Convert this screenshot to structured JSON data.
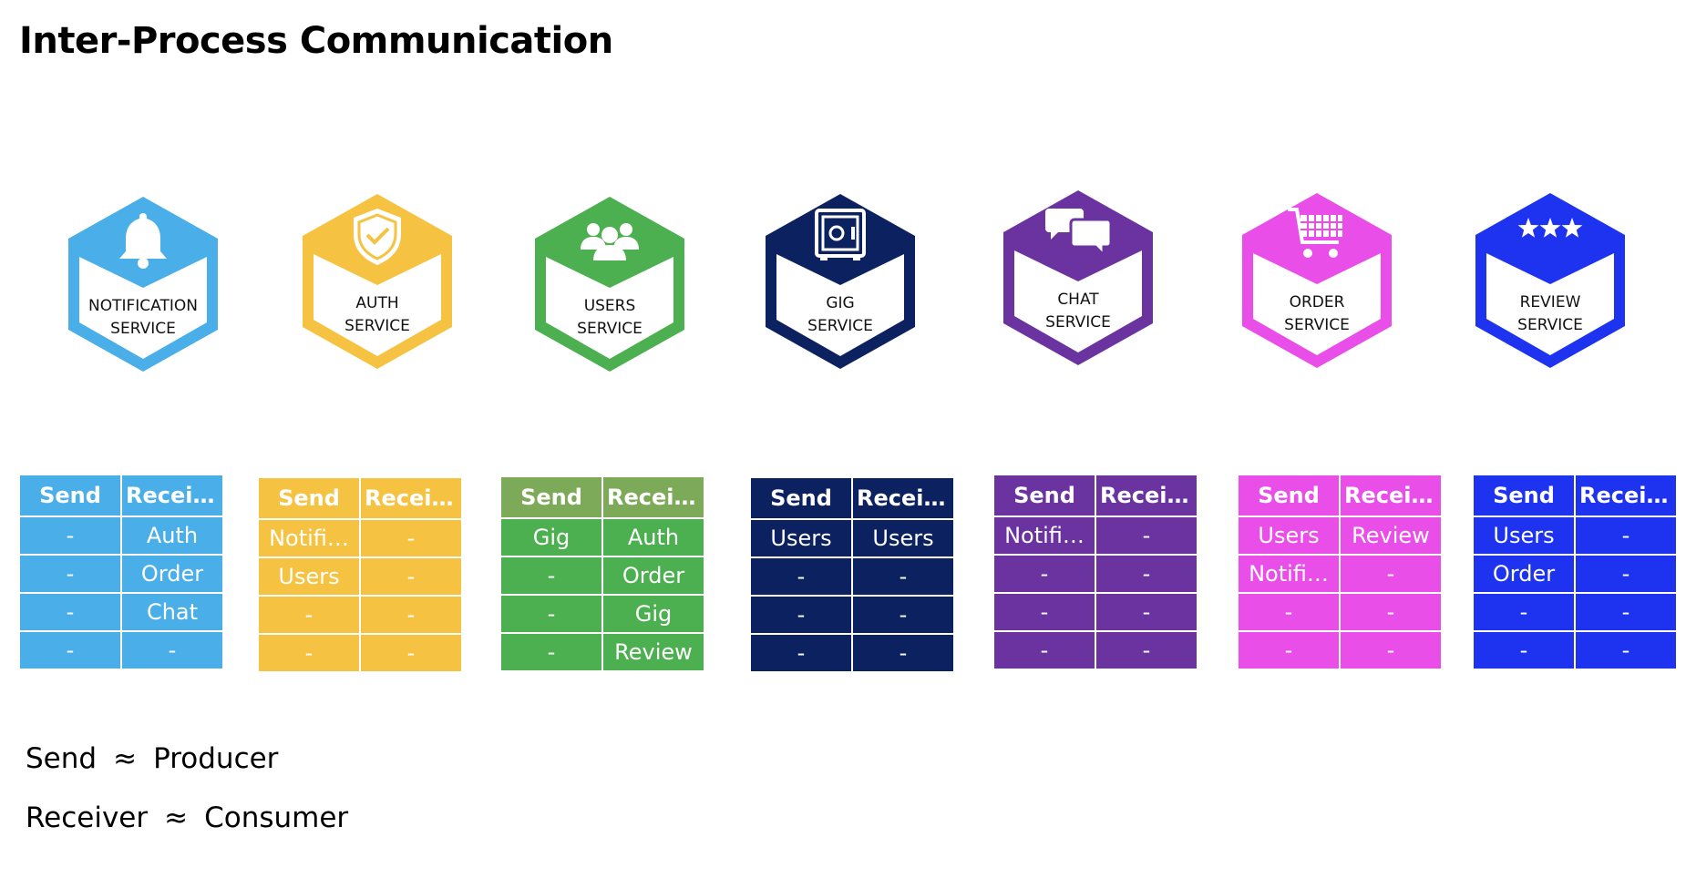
{
  "title": "Inter-Process Communication",
  "headers": {
    "send": "Send",
    "receive": "Receive"
  },
  "services": [
    {
      "key": "notification",
      "line1": "NOTIFICATION",
      "line2": "SERVICE",
      "icon": "bell-icon",
      "color": "#4aaee8",
      "header_color": "#4aaee8",
      "rows": [
        [
          "-",
          "Auth"
        ],
        [
          "-",
          "Order"
        ],
        [
          "-",
          "Chat"
        ],
        [
          "-",
          "-"
        ]
      ]
    },
    {
      "key": "auth",
      "line1": "AUTH",
      "line2": "SERVICE",
      "icon": "shield-check-icon",
      "color": "#f5c242",
      "header_color": "#f5c242",
      "rows": [
        [
          "Notifi…",
          "-"
        ],
        [
          "Users",
          "-"
        ],
        [
          "-",
          "-"
        ],
        [
          "-",
          "-"
        ]
      ]
    },
    {
      "key": "users",
      "line1": "USERS",
      "line2": "SERVICE",
      "icon": "users-group-icon",
      "color": "#4caf50",
      "header_color": "#7daa58",
      "rows": [
        [
          "Gig",
          "Auth"
        ],
        [
          "-",
          "Order"
        ],
        [
          "-",
          "Gig"
        ],
        [
          "-",
          "Review"
        ]
      ]
    },
    {
      "key": "gig",
      "line1": "GIG",
      "line2": "SERVICE",
      "icon": "safe-icon",
      "color": "#0c2160",
      "header_color": "#0c2160",
      "rows": [
        [
          "Users",
          "Users"
        ],
        [
          "-",
          "-"
        ],
        [
          "-",
          "-"
        ],
        [
          "-",
          "-"
        ]
      ]
    },
    {
      "key": "chat",
      "line1": "CHAT",
      "line2": "SERVICE",
      "icon": "chat-bubbles-icon",
      "color": "#6a33a0",
      "header_color": "#6a33a0",
      "rows": [
        [
          "Notifi…",
          "-"
        ],
        [
          "-",
          "-"
        ],
        [
          "-",
          "-"
        ],
        [
          "-",
          "-"
        ]
      ]
    },
    {
      "key": "order",
      "line1": "ORDER",
      "line2": "SERVICE",
      "icon": "shopping-cart-icon",
      "color": "#e94fe8",
      "header_color": "#e94fe8",
      "rows": [
        [
          "Users",
          "Review"
        ],
        [
          "Notifi…",
          "-"
        ],
        [
          "-",
          "-"
        ],
        [
          "-",
          "-"
        ]
      ]
    },
    {
      "key": "review",
      "line1": "REVIEW",
      "line2": "SERVICE",
      "icon": "three-stars-icon",
      "color": "#1d33f0",
      "header_color": "#1d33f0",
      "rows": [
        [
          "Users",
          "-"
        ],
        [
          "Order",
          "-"
        ],
        [
          "-",
          "-"
        ],
        [
          "-",
          "-"
        ]
      ]
    }
  ],
  "legend": [
    {
      "term": "Send",
      "symbol": "≈",
      "meaning": "Producer"
    },
    {
      "term": "Receiver",
      "symbol": "≈",
      "meaning": "Consumer"
    }
  ]
}
